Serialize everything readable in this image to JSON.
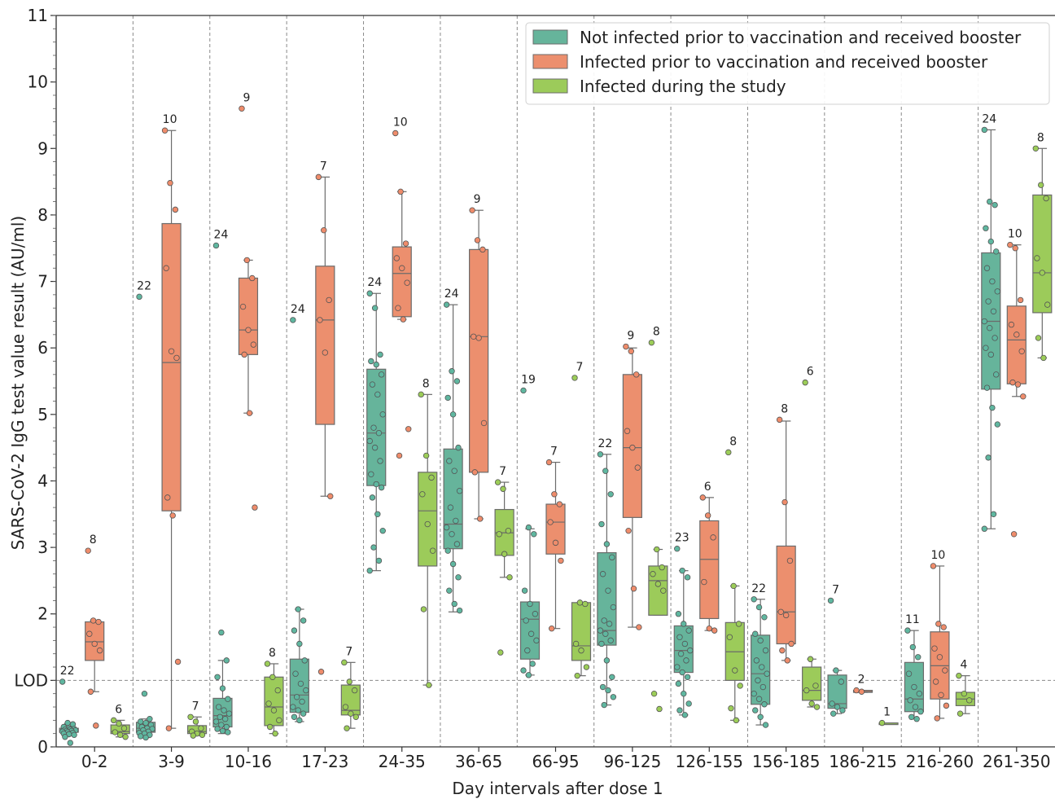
{
  "chart_data": {
    "type": "box",
    "ylabel": "SARS-CoV-2 IgG test value result (AU/ml)",
    "xlabel": "Day intervals after dose 1",
    "ylim": [
      0,
      11
    ],
    "yticks": [
      0,
      1,
      2,
      3,
      4,
      5,
      6,
      7,
      8,
      9,
      10,
      11
    ],
    "ytick_labels": [
      "0",
      "LOD",
      "2",
      "3",
      "4",
      "5",
      "6",
      "7",
      "8",
      "9",
      "10",
      "11"
    ],
    "lod_value": 1,
    "grid": "vertical dashed separators between intervals, dashed LOD line",
    "legend_placement": "top-right",
    "colors": {
      "not_infected": "#66b49b",
      "infected_prior": "#ec8f6e",
      "infected_during": "#9ccb5a",
      "not_infected_point": "#5fb7a0",
      "infected_prior_point": "#ef8c6b",
      "infected_during_point": "#9ccd58"
    },
    "categories": [
      "0-2",
      "3-9",
      "10-16",
      "17-23",
      "24-35",
      "36-65",
      "66-95",
      "96-125",
      "126-155",
      "156-185",
      "186-215",
      "216-260",
      "261-350"
    ],
    "series": [
      {
        "key": "not_infected",
        "name": "Not infected prior to vaccination and received booster",
        "boxes": [
          {
            "cat": "0-2",
            "n": "22",
            "q1": 0.22,
            "med": 0.25,
            "q3": 0.28,
            "wlo": 0.18,
            "whi": 0.35,
            "points": [
              0.98,
              0.36,
              0.34,
              0.3,
              0.28,
              0.27,
              0.26,
              0.26,
              0.25,
              0.24,
              0.24,
              0.23,
              0.22,
              0.21,
              0.2,
              0.19,
              0.18,
              0.15,
              0.06
            ]
          },
          {
            "cat": "3-9",
            "n": "22",
            "q1": 0.22,
            "med": 0.28,
            "q3": 0.37,
            "wlo": 0.14,
            "whi": 0.42,
            "points": [
              6.77,
              0.8,
              0.42,
              0.38,
              0.36,
              0.33,
              0.3,
              0.28,
              0.27,
              0.25,
              0.23,
              0.21,
              0.2,
              0.18,
              0.16,
              0.14
            ]
          },
          {
            "cat": "10-16",
            "n": "24",
            "q1": 0.3,
            "med": 0.47,
            "q3": 0.73,
            "wlo": 0.2,
            "whi": 1.3,
            "points": [
              7.54,
              1.72,
              1.3,
              1.05,
              0.88,
              0.72,
              0.6,
              0.55,
              0.5,
              0.45,
              0.42,
              0.38,
              0.33,
              0.3,
              0.27,
              0.24,
              0.22
            ]
          },
          {
            "cat": "17-23",
            "n": "24",
            "q1": 0.52,
            "med": 0.78,
            "q3": 1.32,
            "wlo": 0.38,
            "whi": 2.07,
            "points": [
              6.42,
              2.07,
              1.9,
              1.75,
              1.55,
              1.3,
              1.1,
              0.95,
              0.85,
              0.75,
              0.68,
              0.6,
              0.55,
              0.5,
              0.45,
              0.4
            ]
          },
          {
            "cat": "24-35",
            "n": "24",
            "q1": 3.93,
            "med": 4.72,
            "q3": 5.68,
            "wlo": 2.65,
            "whi": 6.82,
            "points": [
              6.82,
              6.6,
              5.9,
              5.8,
              5.75,
              5.6,
              5.45,
              5.3,
              5.0,
              4.8,
              4.72,
              4.6,
              4.5,
              4.3,
              4.1,
              3.95,
              3.9,
              3.75,
              3.5,
              3.25,
              3.0,
              2.8,
              2.65
            ]
          },
          {
            "cat": "36-65",
            "n": "24",
            "q1": 2.98,
            "med": 3.35,
            "q3": 4.48,
            "wlo": 2.03,
            "whi": 6.65,
            "points": [
              6.65,
              5.65,
              5.5,
              5.25,
              5.0,
              4.5,
              4.3,
              4.15,
              3.85,
              3.6,
              3.4,
              3.3,
              3.2,
              3.05,
              2.95,
              2.75,
              2.55,
              2.35,
              2.15,
              2.05
            ]
          },
          {
            "cat": "66-95",
            "n": "19",
            "q1": 1.32,
            "med": 1.92,
            "q3": 2.18,
            "wlo": 1.08,
            "whi": 3.28,
            "points": [
              5.36,
              3.3,
              3.2,
              2.35,
              2.15,
              2.0,
              1.9,
              1.7,
              1.6,
              1.45,
              1.25,
              1.15,
              1.08
            ]
          },
          {
            "cat": "96-125",
            "n": "22",
            "q1": 1.53,
            "med": 1.75,
            "q3": 2.92,
            "wlo": 0.63,
            "whi": 4.4,
            "points": [
              4.4,
              4.15,
              3.8,
              3.35,
              3.05,
              2.85,
              2.6,
              2.35,
              2.1,
              1.9,
              1.85,
              1.75,
              1.7,
              1.6,
              1.55,
              1.3,
              1.05,
              0.9,
              0.85,
              0.75,
              0.63
            ]
          },
          {
            "cat": "126-155",
            "n": "23",
            "q1": 1.12,
            "med": 1.45,
            "q3": 1.82,
            "wlo": 0.48,
            "whi": 2.65,
            "points": [
              2.98,
              2.65,
              2.55,
              2.0,
              1.85,
              1.75,
              1.65,
              1.55,
              1.45,
              1.4,
              1.3,
              1.2,
              1.12,
              1.05,
              0.95,
              0.8,
              0.65,
              0.55,
              0.48
            ]
          },
          {
            "cat": "156-185",
            "n": "22",
            "q1": 0.64,
            "med": 1.1,
            "q3": 1.68,
            "wlo": 0.33,
            "whi": 2.22,
            "points": [
              2.22,
              2.1,
              1.95,
              1.7,
              1.6,
              1.45,
              1.3,
              1.2,
              1.1,
              1.0,
              0.9,
              0.8,
              0.72,
              0.64,
              0.55,
              0.45,
              0.33
            ]
          },
          {
            "cat": "186-215",
            "n": "7",
            "q1": 0.58,
            "med": 0.65,
            "q3": 1.08,
            "wlo": 0.5,
            "whi": 1.15,
            "points": [
              2.2,
              1.15,
              0.98,
              0.65,
              0.6,
              0.55,
              0.5
            ]
          },
          {
            "cat": "216-260",
            "n": "11",
            "q1": 0.53,
            "med": 0.72,
            "q3": 1.27,
            "wlo": 0.42,
            "whi": 1.75,
            "points": [
              1.75,
              1.5,
              1.35,
              1.1,
              0.9,
              0.8,
              0.7,
              0.6,
              0.53,
              0.45,
              0.42
            ]
          },
          {
            "cat": "261-350",
            "n": "24",
            "q1": 5.38,
            "med": 6.4,
            "q3": 7.43,
            "wlo": 3.28,
            "whi": 9.28,
            "points": [
              9.28,
              8.2,
              8.15,
              7.8,
              7.6,
              7.45,
              7.2,
              7.0,
              6.85,
              6.7,
              6.55,
              6.4,
              6.3,
              6.15,
              6.0,
              5.9,
              5.6,
              5.4,
              5.1,
              4.85,
              4.35,
              3.5,
              3.28
            ]
          }
        ]
      },
      {
        "key": "infected_prior",
        "name": "Infected prior to vaccination and received booster",
        "boxes": [
          {
            "cat": "0-2",
            "n": "8",
            "q1": 1.3,
            "med": 1.58,
            "q3": 1.88,
            "wlo": 0.83,
            "whi": 1.9,
            "points": [
              2.95,
              1.9,
              1.88,
              1.7,
              1.55,
              1.45,
              0.83,
              0.32
            ]
          },
          {
            "cat": "3-9",
            "n": "10",
            "q1": 3.55,
            "med": 5.78,
            "q3": 7.87,
            "wlo": 0.28,
            "whi": 9.27,
            "points": [
              9.27,
              8.48,
              8.08,
              7.2,
              5.95,
              5.85,
              3.75,
              3.48,
              1.28,
              0.28
            ]
          },
          {
            "cat": "10-16",
            "n": "9",
            "q1": 5.9,
            "med": 6.27,
            "q3": 7.05,
            "wlo": 5.02,
            "whi": 7.32,
            "points": [
              9.6,
              7.32,
              7.05,
              6.62,
              6.27,
              6.05,
              5.9,
              5.02,
              3.6
            ]
          },
          {
            "cat": "17-23",
            "n": "7",
            "q1": 4.85,
            "med": 6.42,
            "q3": 7.23,
            "wlo": 3.77,
            "whi": 8.57,
            "points": [
              8.57,
              7.77,
              6.72,
              6.42,
              5.93,
              3.77,
              1.13
            ]
          },
          {
            "cat": "24-35",
            "n": "10",
            "q1": 6.47,
            "med": 7.12,
            "q3": 7.52,
            "wlo": 6.43,
            "whi": 8.35,
            "points": [
              9.23,
              8.35,
              7.57,
              7.35,
              7.2,
              6.98,
              6.6,
              6.43,
              4.78,
              4.38
            ]
          },
          {
            "cat": "36-65",
            "n": "9",
            "q1": 4.13,
            "med": 6.17,
            "q3": 7.48,
            "wlo": 3.43,
            "whi": 8.07,
            "points": [
              8.07,
              7.62,
              7.48,
              6.17,
              6.15,
              4.87,
              4.13,
              3.43
            ]
          },
          {
            "cat": "66-95",
            "n": "7",
            "q1": 2.9,
            "med": 3.38,
            "q3": 3.65,
            "wlo": 1.78,
            "whi": 4.28,
            "points": [
              4.28,
              3.8,
              3.65,
              3.38,
              3.07,
              2.8,
              1.78
            ]
          },
          {
            "cat": "96-125",
            "n": "9",
            "q1": 3.45,
            "med": 4.5,
            "q3": 5.6,
            "wlo": 1.8,
            "whi": 6.0,
            "points": [
              6.02,
              5.95,
              5.6,
              4.75,
              4.5,
              4.2,
              3.25,
              2.38,
              1.8
            ]
          },
          {
            "cat": "126-155",
            "n": "6",
            "q1": 1.93,
            "med": 2.82,
            "q3": 3.4,
            "wlo": 1.75,
            "whi": 3.75,
            "points": [
              3.75,
              3.48,
              3.15,
              2.48,
              1.78,
              1.75
            ]
          },
          {
            "cat": "156-185",
            "n": "8",
            "q1": 1.55,
            "med": 2.03,
            "q3": 3.02,
            "wlo": 1.3,
            "whi": 4.9,
            "points": [
              4.92,
              3.68,
              2.8,
              2.03,
              1.98,
              1.55,
              1.45,
              1.3
            ]
          },
          {
            "cat": "186-215",
            "n": "2",
            "q1": 0.82,
            "med": 0.83,
            "q3": 0.85,
            "wlo": 0.82,
            "whi": 0.85,
            "points": [
              0.85,
              0.83
            ]
          },
          {
            "cat": "216-260",
            "n": "10",
            "q1": 0.72,
            "med": 1.22,
            "q3": 1.73,
            "wlo": 0.43,
            "whi": 2.72,
            "points": [
              2.72,
              1.85,
              1.8,
              1.48,
              1.35,
              1.15,
              0.98,
              0.78,
              0.62,
              0.43
            ]
          },
          {
            "cat": "261-350",
            "n": "10",
            "q1": 5.46,
            "med": 6.12,
            "q3": 6.63,
            "wlo": 5.27,
            "whi": 7.55,
            "points": [
              7.55,
              7.5,
              6.72,
              6.35,
              6.2,
              5.95,
              5.48,
              5.45,
              5.27,
              3.2
            ]
          }
        ]
      },
      {
        "key": "infected_during",
        "name": "Infected during the study",
        "boxes": [
          {
            "cat": "0-2",
            "n": "6",
            "q1": 0.2,
            "med": 0.23,
            "q3": 0.33,
            "wlo": 0.15,
            "whi": 0.4,
            "points": [
              0.4,
              0.35,
              0.28,
              0.22,
              0.18,
              0.15
            ]
          },
          {
            "cat": "3-9",
            "n": "7",
            "q1": 0.2,
            "med": 0.23,
            "q3": 0.32,
            "wlo": 0.17,
            "whi": 0.45,
            "points": [
              0.45,
              0.38,
              0.28,
              0.23,
              0.2,
              0.18,
              0.17
            ]
          },
          {
            "cat": "10-16",
            "n": "8",
            "q1": 0.32,
            "med": 0.6,
            "q3": 1.05,
            "wlo": 0.2,
            "whi": 1.25,
            "points": [
              1.25,
              1.05,
              0.85,
              0.65,
              0.55,
              0.4,
              0.3,
              0.2
            ]
          },
          {
            "cat": "17-23",
            "n": "7",
            "q1": 0.48,
            "med": 0.55,
            "q3": 0.93,
            "wlo": 0.28,
            "whi": 1.27,
            "points": [
              1.27,
              0.98,
              0.85,
              0.6,
              0.5,
              0.45,
              0.28
            ]
          },
          {
            "cat": "24-35",
            "n": "8",
            "q1": 2.72,
            "med": 3.55,
            "q3": 4.13,
            "wlo": 0.93,
            "whi": 5.3,
            "points": [
              5.3,
              4.38,
              4.05,
              3.8,
              3.35,
              2.95,
              2.07,
              0.93
            ]
          },
          {
            "cat": "36-65",
            "n": "7",
            "q1": 2.88,
            "med": 3.22,
            "q3": 3.57,
            "wlo": 2.55,
            "whi": 3.98,
            "points": [
              3.98,
              3.88,
              3.25,
              3.2,
              2.9,
              2.55,
              1.42
            ]
          },
          {
            "cat": "66-95",
            "n": "7",
            "q1": 1.3,
            "med": 1.52,
            "q3": 2.17,
            "wlo": 1.07,
            "whi": 2.17,
            "points": [
              5.55,
              2.17,
              2.15,
              1.55,
              1.45,
              1.2,
              1.07
            ]
          },
          {
            "cat": "96-125",
            "n": "8",
            "q1": 1.98,
            "med": 2.5,
            "q3": 2.72,
            "wlo": 1.98,
            "whi": 2.97,
            "points": [
              6.08,
              2.97,
              2.7,
              2.6,
              2.45,
              2.35,
              0.8,
              0.57
            ]
          },
          {
            "cat": "126-155",
            "n": "8",
            "q1": 1.0,
            "med": 1.43,
            "q3": 1.87,
            "wlo": 0.4,
            "whi": 2.42,
            "points": [
              4.43,
              2.42,
              1.85,
              1.65,
              1.15,
              0.92,
              0.58,
              0.4
            ]
          },
          {
            "cat": "156-185",
            "n": "6",
            "q1": 0.7,
            "med": 0.85,
            "q3": 1.2,
            "wlo": 0.6,
            "whi": 1.32,
            "points": [
              5.48,
              1.32,
              0.92,
              0.85,
              0.65,
              0.6
            ]
          },
          {
            "cat": "186-215",
            "n": "1",
            "q1": 0.36,
            "med": 0.36,
            "q3": 0.36,
            "wlo": 0.36,
            "whi": 0.36,
            "points": [
              0.36
            ]
          },
          {
            "cat": "216-260",
            "n": "4",
            "q1": 0.62,
            "med": 0.72,
            "q3": 0.82,
            "wlo": 0.5,
            "whi": 1.07,
            "points": [
              1.07,
              0.8,
              0.7,
              0.5
            ]
          },
          {
            "cat": "261-350",
            "n": "8",
            "q1": 6.53,
            "med": 7.13,
            "q3": 8.3,
            "wlo": 5.85,
            "whi": 9.0,
            "points": [
              9.0,
              8.45,
              8.25,
              7.35,
              7.13,
              6.65,
              6.15,
              5.85
            ]
          }
        ]
      }
    ]
  }
}
